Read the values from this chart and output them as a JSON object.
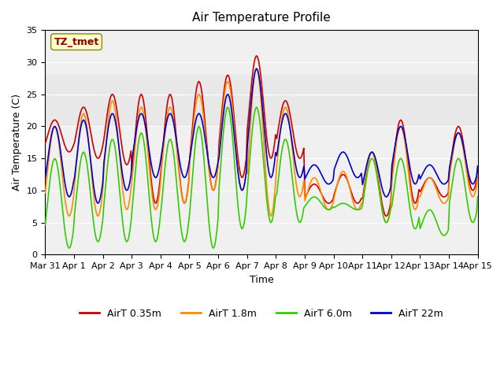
{
  "title": "Air Temperature Profile",
  "xlabel": "Time",
  "ylabel": "Air Temperature (C)",
  "ylim": [
    0,
    35
  ],
  "yticks": [
    0,
    5,
    10,
    15,
    20,
    25,
    30,
    35
  ],
  "annotation_text": "TZ_tmet",
  "annotation_color": "#8B0000",
  "annotation_bg": "#FFFFCC",
  "shaded_band": [
    20,
    28
  ],
  "shaded_color": "#E8E8E8",
  "series_colors": {
    "AirT 0.35m": "#CC0000",
    "AirT 1.8m": "#FF8C00",
    "AirT 6.0m": "#33CC00",
    "AirT 22m": "#0000CC"
  },
  "xtick_positions": [
    0,
    1,
    2,
    3,
    4,
    5,
    6,
    7,
    8,
    9,
    10,
    11,
    12,
    13,
    14,
    15
  ],
  "xtick_labels": [
    "Mar 31",
    "Apr 1",
    "Apr 2",
    "Apr 3",
    "Apr 4",
    "Apr 5",
    "Apr 6",
    "Apr 7",
    "Apr 8",
    "Apr 9",
    "Apr 10",
    "Apr 11",
    "Apr 12",
    "Apr 13",
    "Apr 14",
    "Apr 15"
  ],
  "legend_labels": [
    "AirT 0.35m",
    "AirT 1.8m",
    "AirT 6.0m",
    "AirT 22m"
  ],
  "days": 16
}
